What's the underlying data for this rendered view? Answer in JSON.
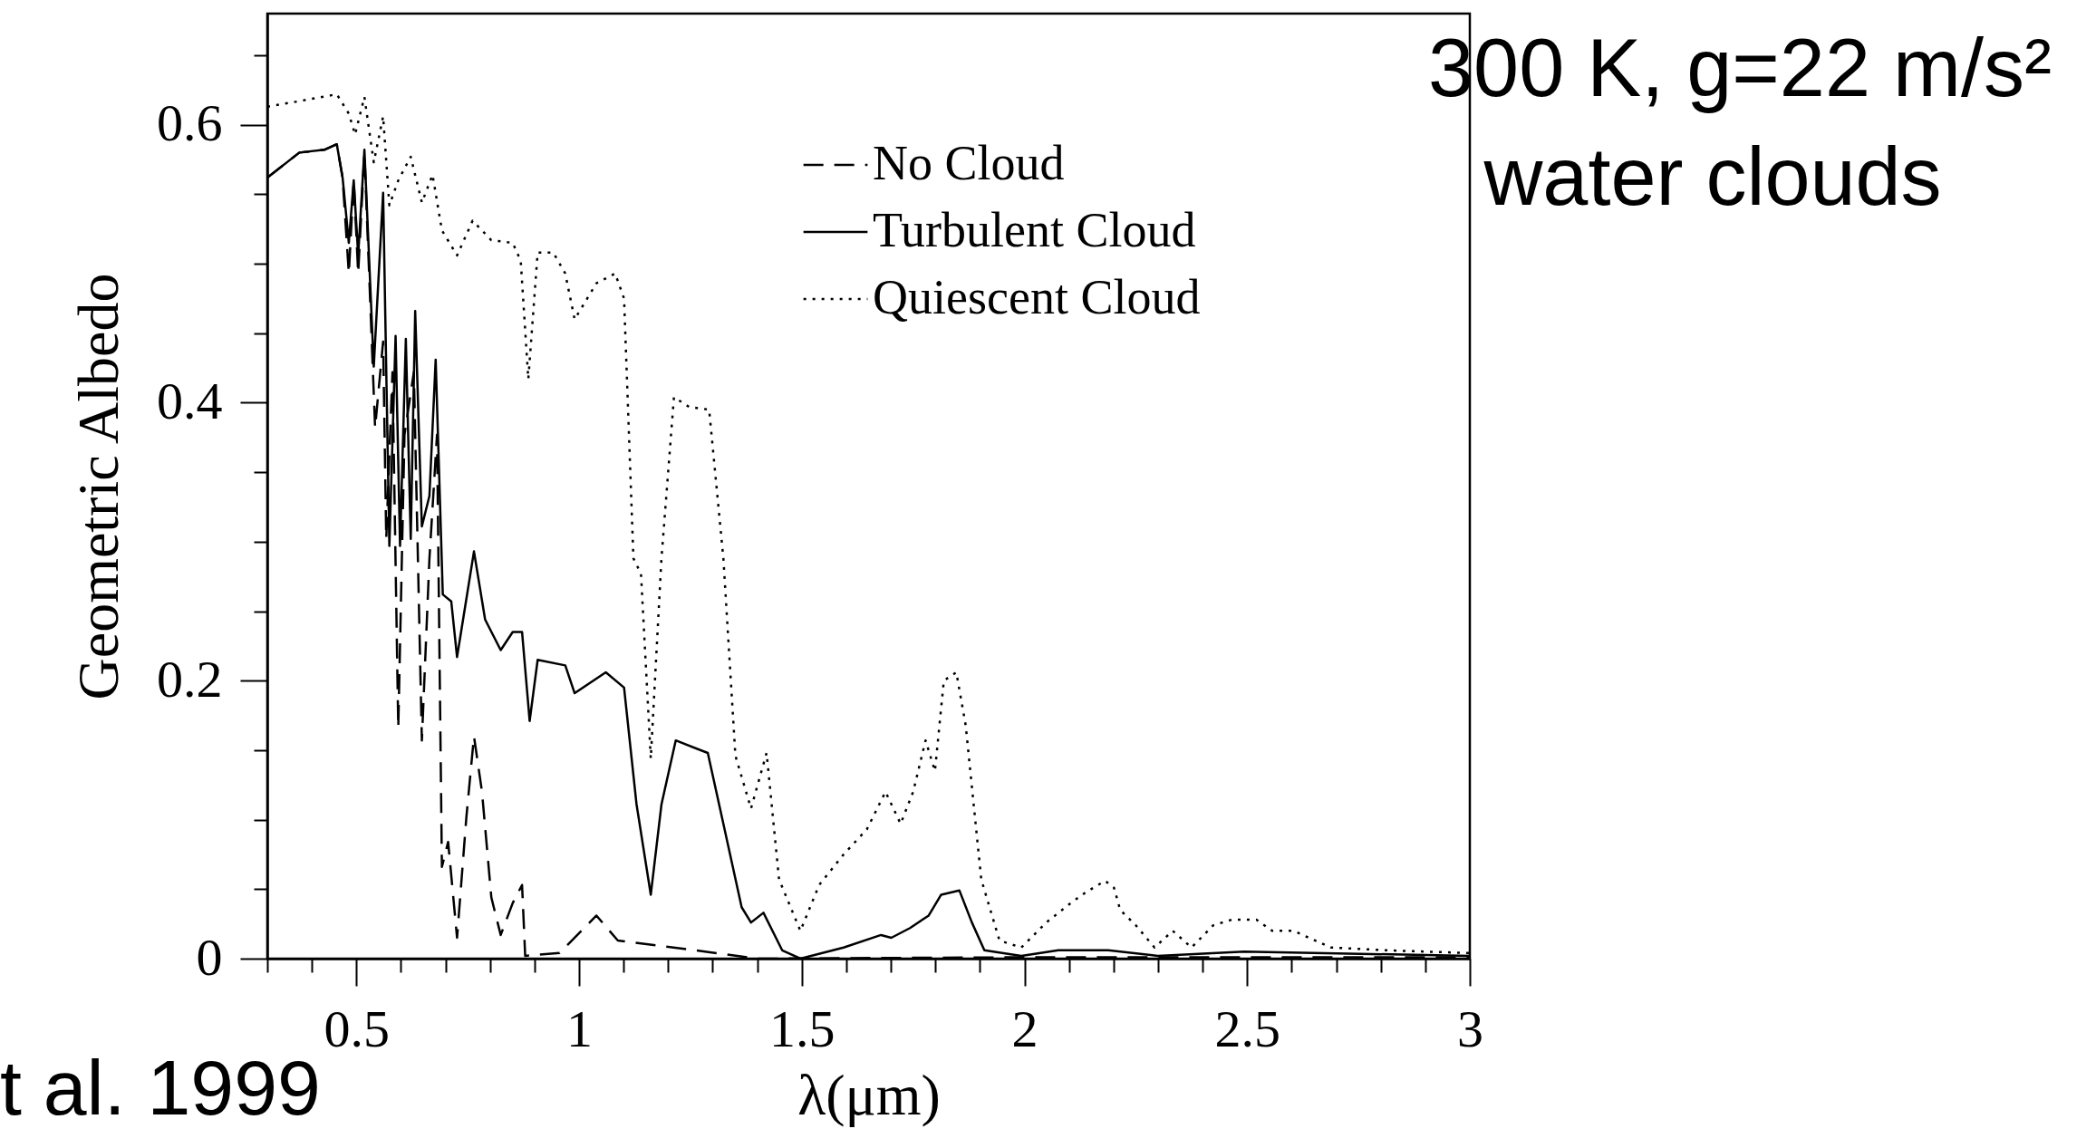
{
  "chart_data": {
    "type": "line",
    "title": "300 K, g=22 m/s²",
    "subtitle": "water clouds",
    "xlabel": "λ(μm)",
    "ylabel": "Geometric Albedo",
    "annotations": [
      "t al. 1999"
    ],
    "xlim": [
      0.3,
      3
    ],
    "ylim": [
      0,
      0.68
    ],
    "xticks": [
      {
        "value": 0.3,
        "label": null
      },
      {
        "value": 0.4,
        "label": null
      },
      0.5,
      {
        "value": 0.6,
        "label": null
      },
      {
        "value": 0.7,
        "label": null
      },
      {
        "value": 0.8,
        "label": null
      },
      {
        "value": 0.9,
        "label": null
      },
      1,
      {
        "value": 1.1,
        "label": null
      },
      {
        "value": 1.2,
        "label": null
      },
      {
        "value": 1.3,
        "label": null
      },
      {
        "value": 1.4,
        "label": null
      },
      1.5,
      {
        "value": 1.6,
        "label": null
      },
      {
        "value": 1.7,
        "label": null
      },
      {
        "value": 1.8,
        "label": null
      },
      {
        "value": 1.9,
        "label": null
      },
      2,
      {
        "value": 2.1,
        "label": null
      },
      {
        "value": 2.2,
        "label": null
      },
      {
        "value": 2.3,
        "label": null
      },
      {
        "value": 2.4,
        "label": null
      },
      2.5,
      {
        "value": 2.6,
        "label": null
      },
      {
        "value": 2.7,
        "label": null
      },
      {
        "value": 2.8,
        "label": null
      },
      {
        "value": 2.9,
        "label": null
      },
      3
    ],
    "yticks": [
      0,
      {
        "value": 0.05,
        "label": null
      },
      {
        "value": 0.1,
        "label": null
      },
      {
        "value": 0.15,
        "label": null
      },
      0.2,
      {
        "value": 0.25,
        "label": null
      },
      {
        "value": 0.3,
        "label": null
      },
      {
        "value": 0.35,
        "label": null
      },
      0.4,
      {
        "value": 0.45,
        "label": null
      },
      {
        "value": 0.5,
        "label": null
      },
      {
        "value": 0.55,
        "label": null
      },
      0.6,
      {
        "value": 0.65,
        "label": null
      }
    ],
    "grid": false,
    "legend": "top right",
    "series": [
      {
        "name": "No Cloud",
        "color": "#000000",
        "line_style": "dashed",
        "x": [
          0.3,
          0.372,
          0.428,
          0.456,
          0.469,
          0.483,
          0.494,
          0.504,
          0.518,
          0.542,
          0.56,
          0.567,
          0.581,
          0.594,
          0.608,
          0.629,
          0.647,
          0.664,
          0.681,
          0.692,
          0.706,
          0.726,
          0.747,
          0.764,
          0.782,
          0.803,
          0.824,
          0.851,
          0.872,
          0.879,
          0.956,
          1.039,
          1.087,
          1.261,
          1.4,
          2.0,
          3.0
        ],
        "values": [
          0.562,
          0.58,
          0.582,
          0.586,
          0.562,
          0.493,
          0.56,
          0.493,
          0.58,
          0.382,
          0.444,
          0.302,
          0.422,
          0.166,
          0.377,
          0.422,
          0.157,
          0.288,
          0.377,
          0.066,
          0.084,
          0.015,
          0.102,
          0.16,
          0.12,
          0.044,
          0.017,
          0.04,
          0.053,
          0.002,
          0.004,
          0.031,
          0.013,
          0.006,
          0.0,
          0.001,
          0.001
        ]
      },
      {
        "name": "Turbulent Cloud",
        "color": "#000000",
        "line_style": "solid",
        "x": [
          0.3,
          0.372,
          0.428,
          0.456,
          0.469,
          0.483,
          0.494,
          0.504,
          0.518,
          0.539,
          0.56,
          0.574,
          0.588,
          0.598,
          0.611,
          0.622,
          0.632,
          0.647,
          0.664,
          0.678,
          0.694,
          0.713,
          0.726,
          0.764,
          0.789,
          0.824,
          0.851,
          0.872,
          0.889,
          0.907,
          0.969,
          0.99,
          1.06,
          1.101,
          1.129,
          1.161,
          1.185,
          1.217,
          1.289,
          1.324,
          1.365,
          1.386,
          1.414,
          1.456,
          1.497,
          1.594,
          1.678,
          1.701,
          1.743,
          1.785,
          1.813,
          1.854,
          1.882,
          1.91,
          1.993,
          2.076,
          2.188,
          2.299,
          2.493,
          3.0
        ],
        "values": [
          0.562,
          0.58,
          0.582,
          0.586,
          0.562,
          0.515,
          0.56,
          0.506,
          0.582,
          0.426,
          0.551,
          0.297,
          0.448,
          0.297,
          0.446,
          0.302,
          0.466,
          0.311,
          0.333,
          0.431,
          0.262,
          0.257,
          0.217,
          0.293,
          0.244,
          0.222,
          0.235,
          0.235,
          0.171,
          0.215,
          0.211,
          0.191,
          0.206,
          0.195,
          0.111,
          0.046,
          0.111,
          0.157,
          0.148,
          0.097,
          0.037,
          0.026,
          0.033,
          0.006,
          0.0,
          0.008,
          0.017,
          0.015,
          0.022,
          0.031,
          0.046,
          0.049,
          0.026,
          0.006,
          0.002,
          0.006,
          0.006,
          0.002,
          0.005,
          0.002
        ]
      },
      {
        "name": "Quiescent Cloud",
        "color": "#000000",
        "line_style": "dotted",
        "x": [
          0.3,
          0.372,
          0.456,
          0.483,
          0.497,
          0.518,
          0.539,
          0.56,
          0.574,
          0.594,
          0.622,
          0.647,
          0.671,
          0.692,
          0.726,
          0.761,
          0.803,
          0.851,
          0.869,
          0.886,
          0.907,
          0.942,
          0.969,
          0.99,
          1.039,
          1.081,
          1.101,
          1.122,
          1.139,
          1.161,
          1.185,
          1.213,
          1.247,
          1.292,
          1.324,
          1.351,
          1.386,
          1.421,
          1.449,
          1.497,
          1.539,
          1.594,
          1.646,
          1.688,
          1.722,
          1.75,
          1.778,
          1.799,
          1.819,
          1.847,
          1.868,
          1.903,
          1.944,
          1.993,
          2.049,
          2.104,
          2.139,
          2.181,
          2.201,
          2.215,
          2.25,
          2.292,
          2.333,
          2.375,
          2.424,
          2.465,
          2.521,
          2.556,
          2.604,
          2.688,
          2.813,
          3.0
        ],
        "values": [
          0.613,
          0.617,
          0.622,
          0.608,
          0.593,
          0.62,
          0.573,
          0.606,
          0.542,
          0.56,
          0.577,
          0.544,
          0.564,
          0.524,
          0.506,
          0.531,
          0.517,
          0.515,
          0.502,
          0.417,
          0.508,
          0.508,
          0.493,
          0.46,
          0.486,
          0.493,
          0.475,
          0.288,
          0.277,
          0.144,
          0.288,
          0.404,
          0.397,
          0.395,
          0.288,
          0.146,
          0.108,
          0.148,
          0.057,
          0.02,
          0.053,
          0.075,
          0.093,
          0.12,
          0.097,
          0.12,
          0.157,
          0.135,
          0.2,
          0.206,
          0.168,
          0.057,
          0.013,
          0.008,
          0.026,
          0.04,
          0.048,
          0.056,
          0.051,
          0.035,
          0.024,
          0.008,
          0.02,
          0.008,
          0.024,
          0.028,
          0.028,
          0.02,
          0.02,
          0.008,
          0.006,
          0.004
        ]
      }
    ]
  }
}
